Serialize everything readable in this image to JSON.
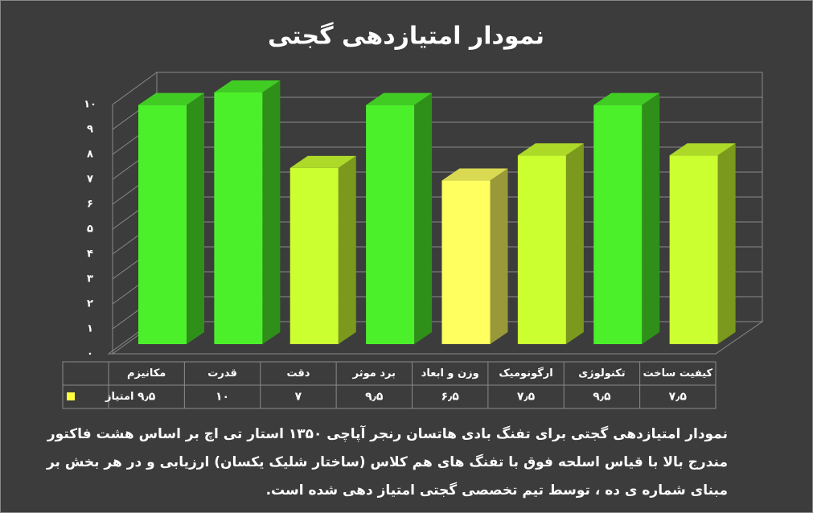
{
  "chart_data": {
    "type": "bar3d",
    "title": "نمودار امتیازدهی گجتی",
    "categories": [
      "مکانیزم",
      "قدرت",
      "دقت",
      "برد موثر",
      "وزن و ابعاد",
      "ارگونومیک",
      "تکنولوژی",
      "کیفیت ساخت"
    ],
    "series": [
      {
        "name": "امتیاز",
        "color": "#ffff40",
        "colors": [
          "#4cf02a",
          "#4cf02a",
          "#ccff30",
          "#4cf02a",
          "#ffff60",
          "#ccff30",
          "#4cf02a",
          "#ccff30"
        ],
        "values": [
          9.5,
          10,
          7,
          9.5,
          6.5,
          7.5,
          9.5,
          7.5
        ],
        "value_labels": [
          "۹٫۵",
          "۱۰",
          "۷",
          "۹٫۵",
          "۶٫۵",
          "۷٫۵",
          "۹٫۵",
          "۷٫۵"
        ]
      }
    ],
    "ylim": [
      0,
      10
    ],
    "yticks": [
      {
        "value": 0,
        "label": "۰"
      },
      {
        "value": 1,
        "label": "۱"
      },
      {
        "value": 2,
        "label": "۲"
      },
      {
        "value": 3,
        "label": "۳"
      },
      {
        "value": 4,
        "label": "۴"
      },
      {
        "value": 5,
        "label": "۵"
      },
      {
        "value": 6,
        "label": "۶"
      },
      {
        "value": 7,
        "label": "۷"
      },
      {
        "value": 8,
        "label": "۸"
      },
      {
        "value": 9,
        "label": "۹"
      },
      {
        "value": 10,
        "label": "۱۰"
      }
    ],
    "grid": true,
    "description": [
      "نمودار امتیازدهی گجتی برای تفنگ بادی هاتسان رنجر آپاچی ۱۳۵۰ استار تی اچ بر اساس هشت فاکتور",
      "مندرج بالا با قیاس اسلحه فوق با تفنگ های هم کلاس (ساختار شلیک یکسان) ارزیابی و در هر بخش بر",
      "مبنای شماره ی ده ، توسط تیم تخصصی گجتی امتیاز دهی شده است."
    ]
  }
}
